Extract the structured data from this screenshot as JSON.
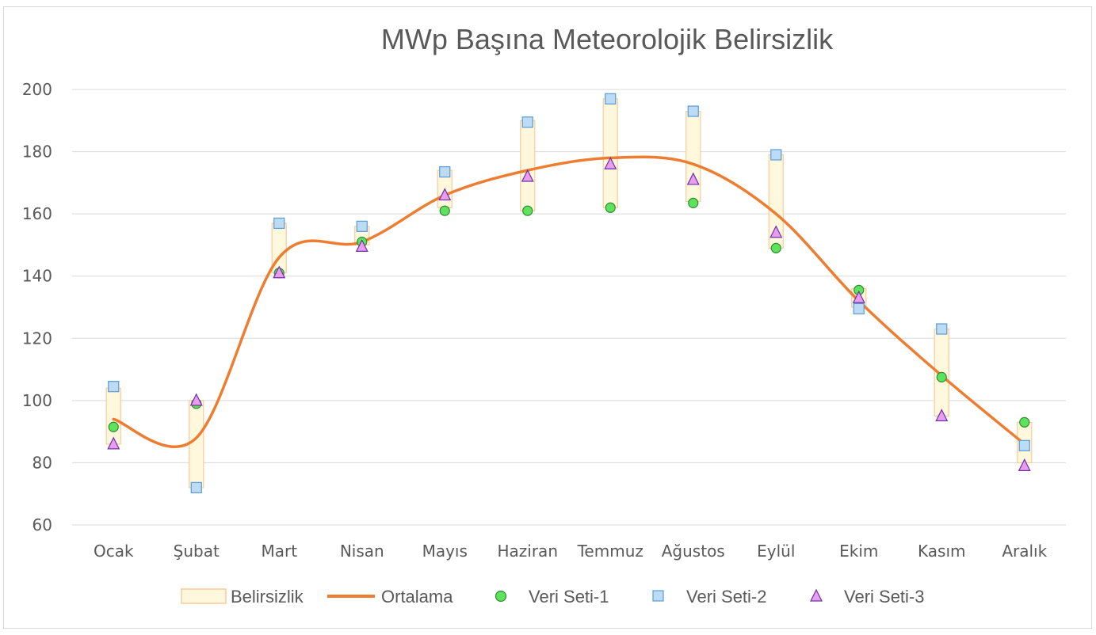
{
  "chart_data": {
    "type": "line",
    "title": "MWp Başına Meteorolojik Belirsizlik",
    "xlabel": "",
    "ylabel": "",
    "ylim": [
      60,
      200
    ],
    "yticks": [
      60,
      80,
      100,
      120,
      140,
      160,
      180,
      200
    ],
    "grid": true,
    "legend_position": "bottom",
    "categories": [
      "Ocak",
      "Şubat",
      "Mart",
      "Nisan",
      "Mayıs",
      "Haziran",
      "Temmuz",
      "Ağustos",
      "Eylül",
      "Ekim",
      "Kasım",
      "Aralık"
    ],
    "series": [
      {
        "name": "Belirsizlik",
        "kind": "range",
        "low": [
          86,
          72,
          141,
          150,
          162,
          161,
          162,
          164,
          149,
          130,
          95,
          80
        ],
        "high": [
          104,
          100,
          157,
          156,
          174,
          190,
          197,
          193,
          179,
          136,
          123,
          93
        ]
      },
      {
        "name": "Ortalama",
        "kind": "line",
        "values": [
          94,
          88,
          146,
          151,
          166,
          174,
          178,
          176,
          160,
          132,
          108,
          86
        ]
      },
      {
        "name": "Veri Seti-1",
        "kind": "marker",
        "values": [
          91.5,
          99,
          141,
          151,
          161,
          161,
          162,
          163.5,
          149,
          135.5,
          107.5,
          93
        ]
      },
      {
        "name": "Veri Seti-2",
        "kind": "marker",
        "values": [
          104.5,
          72,
          157,
          156,
          173.5,
          189.5,
          197,
          193,
          179,
          129.5,
          123,
          85.5
        ]
      },
      {
        "name": "Veri Seti-3",
        "kind": "marker",
        "values": [
          86,
          100,
          141,
          149.5,
          166,
          172,
          176,
          171,
          154,
          133,
          95,
          79
        ]
      }
    ]
  },
  "colors": {
    "band_fill": "#fff8dc",
    "band_stroke": "#f9cb9c",
    "line": "#ed7d31",
    "set1_fill": "#5fe35f",
    "set1_stroke": "#2e8b2e",
    "set2_fill": "#bcdcf5",
    "set2_stroke": "#5b9bd5",
    "set3_fill": "#e89ef0",
    "set3_stroke": "#7030a0",
    "grid": "#d9d9d9",
    "text": "#595959"
  }
}
